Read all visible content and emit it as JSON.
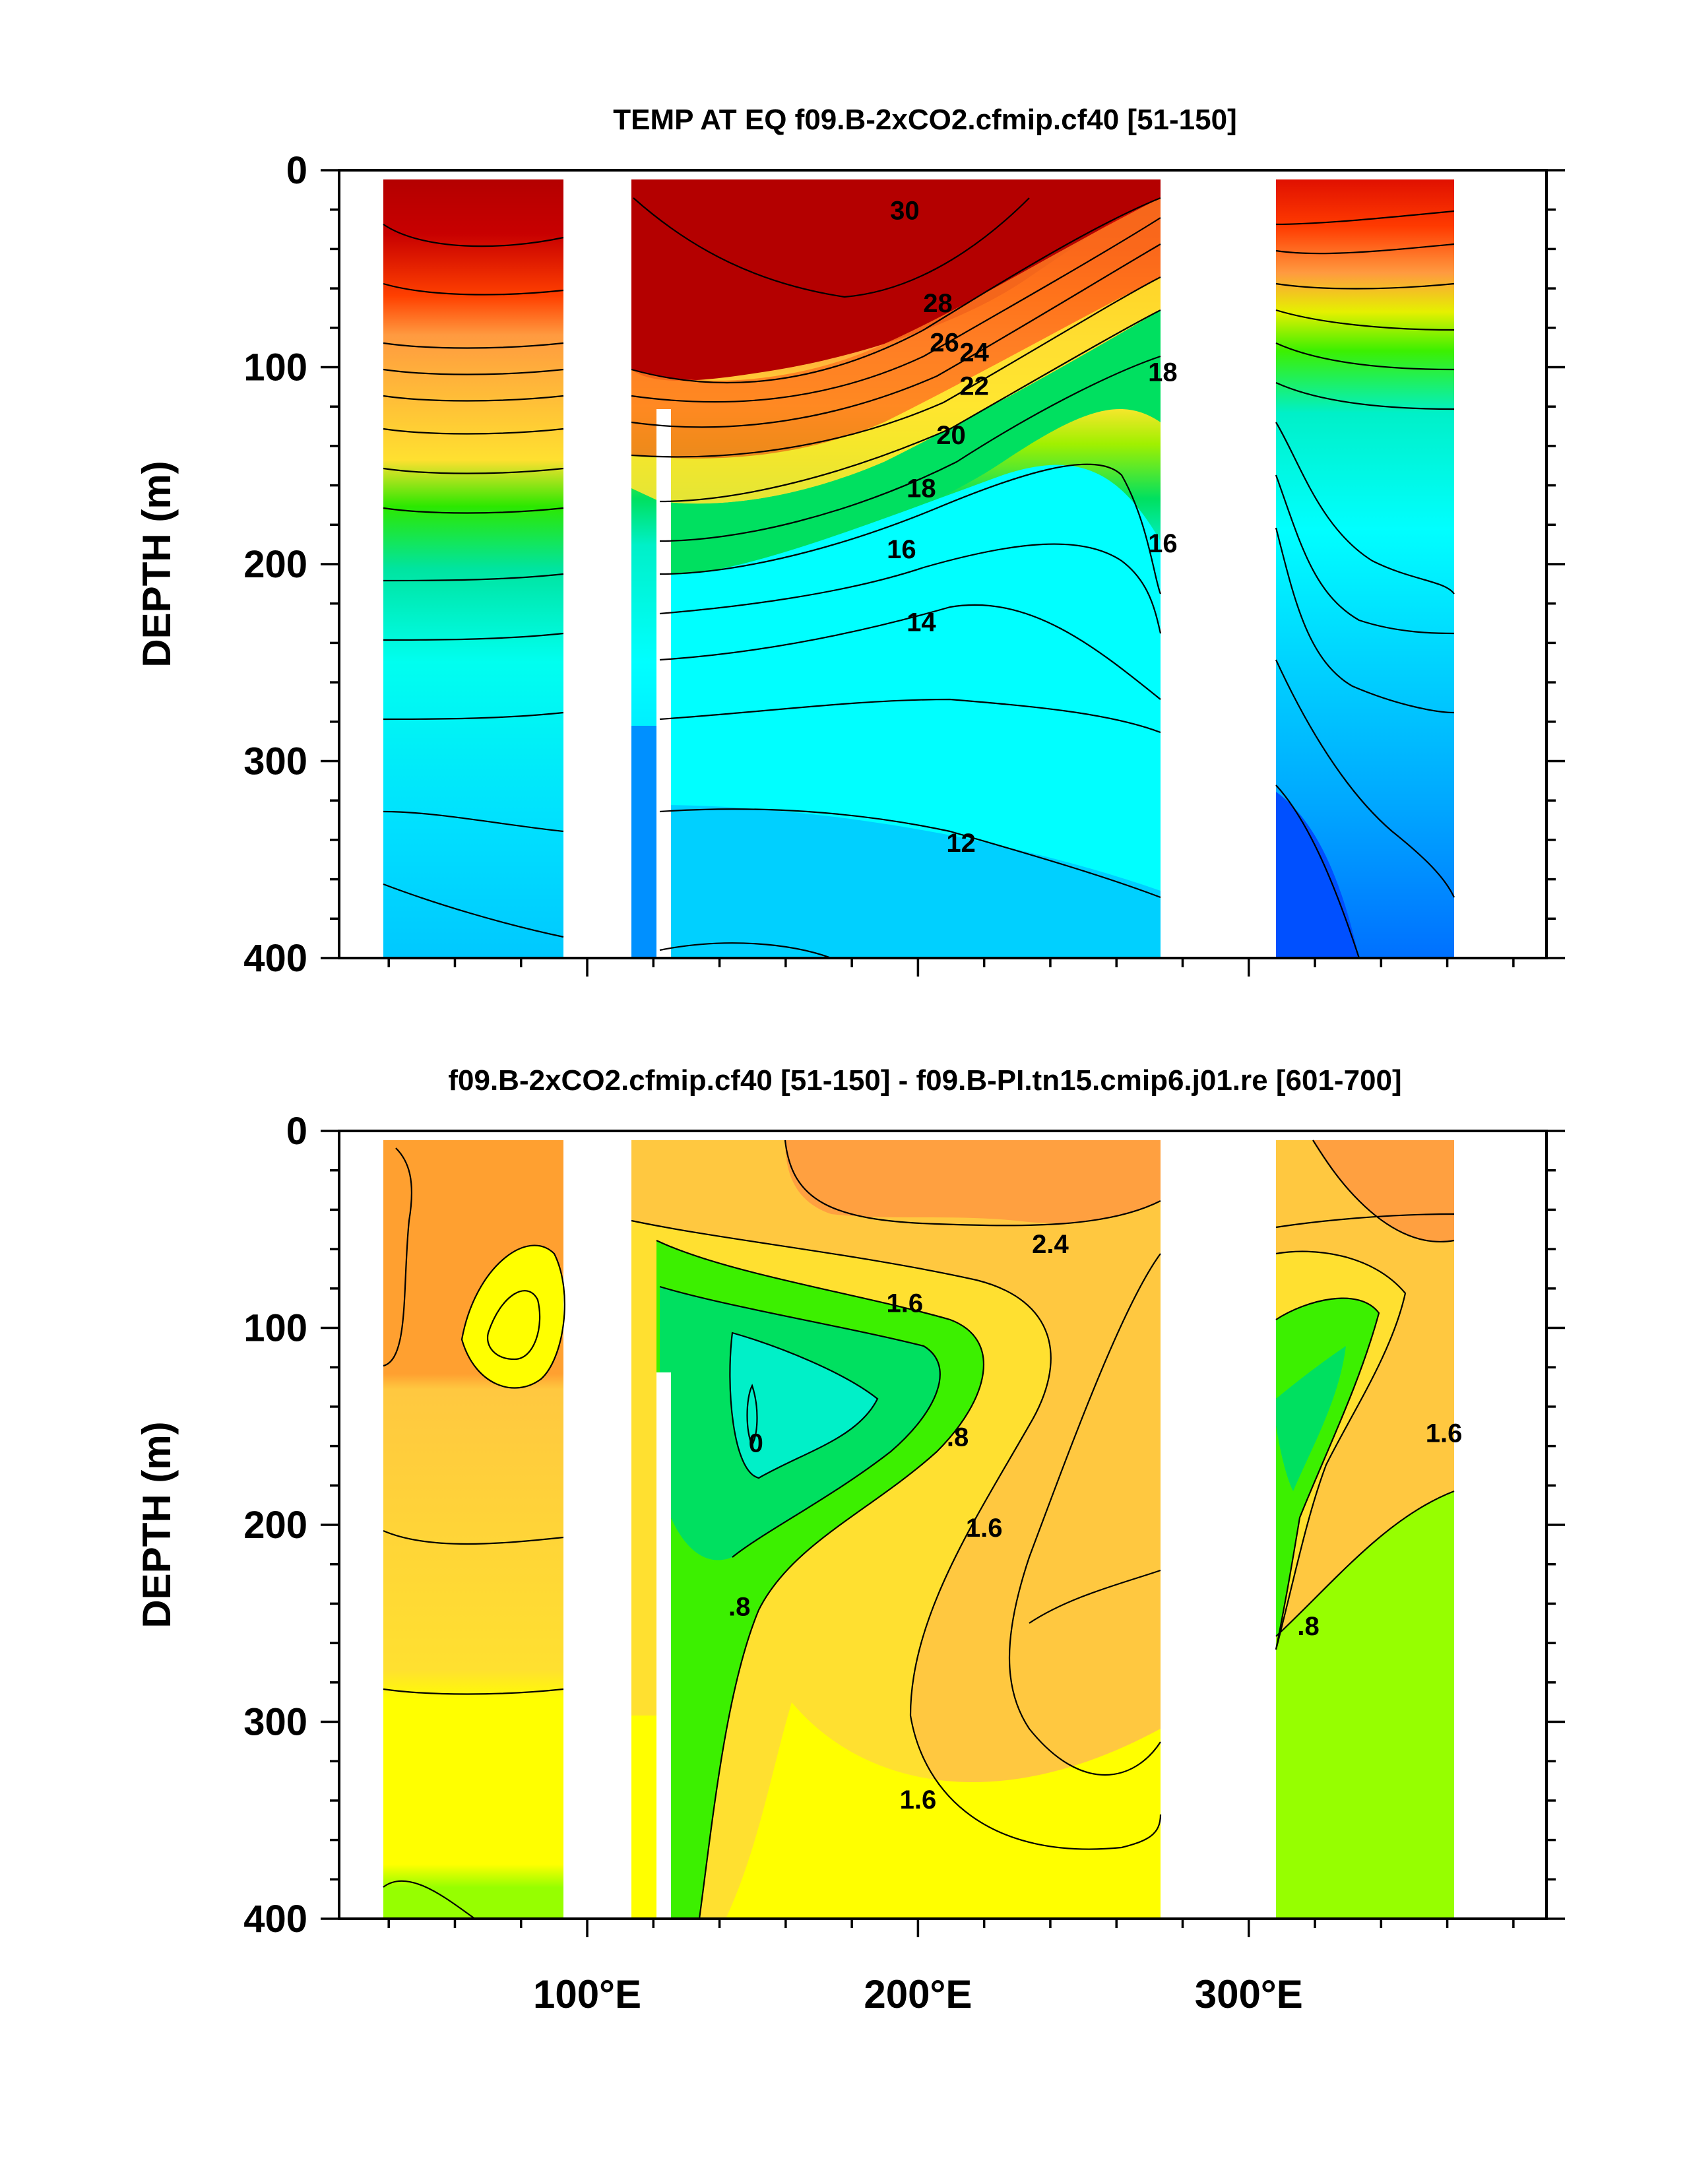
{
  "chart_data": [
    {
      "type": "heatmap",
      "title": "TEMP AT EQ f09.B-2xCO2.cfmip.cf40 [51-150]",
      "ylabel": "DEPTH (m)",
      "xlabel": "",
      "xlim": [
        25,
        390
      ],
      "ylim": [
        400,
        0
      ],
      "yticks": [
        0,
        100,
        200,
        300,
        400
      ],
      "xticks": [
        100,
        200,
        300
      ],
      "xtick_labels": [
        "",
        "",
        ""
      ],
      "contour_labels": [
        {
          "text": "30",
          "x": 196,
          "y": 25
        },
        {
          "text": "28",
          "x": 206,
          "y": 72
        },
        {
          "text": "26",
          "x": 208,
          "y": 92
        },
        {
          "text": "24",
          "x": 217,
          "y": 97
        },
        {
          "text": "22",
          "x": 217,
          "y": 114
        },
        {
          "text": "20",
          "x": 210,
          "y": 139
        },
        {
          "text": "18",
          "x": 201,
          "y": 166
        },
        {
          "text": "16",
          "x": 195,
          "y": 197
        },
        {
          "text": "14",
          "x": 201,
          "y": 234
        },
        {
          "text": "12",
          "x": 213,
          "y": 346
        },
        {
          "text": "18",
          "x": 274,
          "y": 107
        },
        {
          "text": "16",
          "x": 274,
          "y": 194
        }
      ],
      "land_gaps": [
        [
          98,
          119
        ],
        [
          127,
          131
        ],
        [
          279,
          315
        ]
      ],
      "color_scale": [
        "#0044ff",
        "#0088ff",
        "#00b4ff",
        "#00dcff",
        "#00ffff",
        "#00f0c8",
        "#00e060",
        "#3cf000",
        "#a0f000",
        "#e6f000",
        "#ffdc3c",
        "#ffc850",
        "#ffa040",
        "#ff7820",
        "#ff4800",
        "#e01000",
        "#b40000"
      ]
    },
    {
      "type": "heatmap",
      "title": "f09.B-2xCO2.cfmip.cf40 [51-150] - f09.B-PI.tn15.cmip6.j01.re [601-700]",
      "ylabel": "DEPTH (m)",
      "xlabel": "",
      "xlim": [
        25,
        390
      ],
      "ylim": [
        400,
        0
      ],
      "yticks": [
        0,
        100,
        200,
        300,
        400
      ],
      "xticks": [
        100,
        200,
        300
      ],
      "xtick_labels": [
        "100°E",
        "200°E",
        "300°E"
      ],
      "contour_labels": [
        {
          "text": "2.4",
          "x": 240,
          "y": 62
        },
        {
          "text": "1.6",
          "x": 196,
          "y": 92
        },
        {
          "text": "0",
          "x": 151,
          "y": 163
        },
        {
          "text": ".8",
          "x": 212,
          "y": 160
        },
        {
          "text": "1.6",
          "x": 220,
          "y": 206
        },
        {
          "text": ".8",
          "x": 146,
          "y": 246
        },
        {
          "text": "1.6",
          "x": 200,
          "y": 344
        },
        {
          "text": "1.6",
          "x": 359,
          "y": 158
        },
        {
          "text": ".8",
          "x": 318,
          "y": 256
        }
      ],
      "land_gaps": [
        [
          98,
          119
        ],
        [
          127,
          131
        ],
        [
          279,
          315
        ]
      ],
      "color_scale": [
        "#00f0c8",
        "#00e060",
        "#3cf000",
        "#96ff00",
        "#ffff00",
        "#ffe630",
        "#ffc840",
        "#ffa030"
      ]
    }
  ]
}
